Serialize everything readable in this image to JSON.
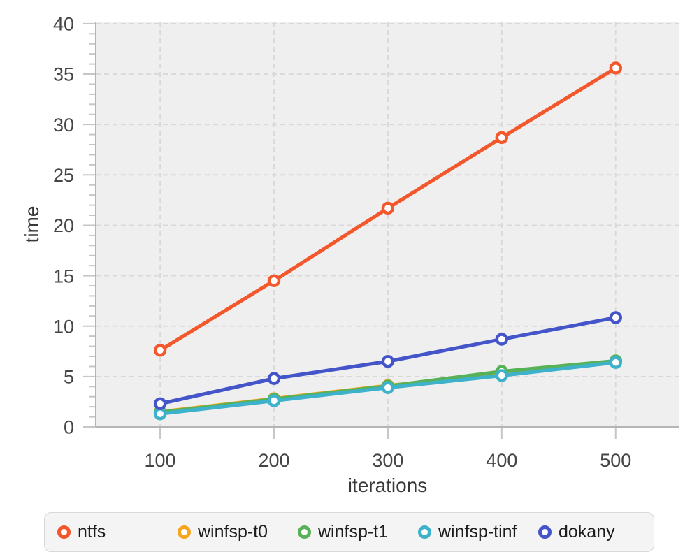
{
  "chart_data": {
    "type": "line",
    "title": "",
    "xlabel": "iterations",
    "ylabel": "time",
    "x": [
      100,
      200,
      300,
      400,
      500
    ],
    "xticks": [
      "100",
      "200",
      "300",
      "400",
      "500"
    ],
    "yticks": [
      0,
      5,
      10,
      15,
      20,
      25,
      30,
      35,
      40
    ],
    "xlim": [
      43.5,
      556
    ],
    "ylim": [
      0,
      40.2
    ],
    "grid": "dashed",
    "legend_position": "bottom",
    "plot_bg": "#efefef",
    "grid_color": "#d8d8d8",
    "axis_color": "#b5b5b5",
    "tick_color": "#c6c6c6",
    "series": [
      {
        "name": "ntfs",
        "color": "#f2582b",
        "values": [
          7.6,
          14.5,
          21.7,
          28.7,
          35.6
        ]
      },
      {
        "name": "winfsp-t0",
        "color": "#f6a61e",
        "values": [
          1.5,
          2.8,
          4.1,
          5.25,
          6.5
        ]
      },
      {
        "name": "winfsp-t1",
        "color": "#57b257",
        "values": [
          1.45,
          2.75,
          4.05,
          5.5,
          6.55
        ]
      },
      {
        "name": "winfsp-tinf",
        "color": "#3eb1cb",
        "values": [
          1.3,
          2.6,
          3.9,
          5.1,
          6.4
        ]
      },
      {
        "name": "dokany",
        "color": "#4355c9",
        "values": [
          2.3,
          4.8,
          6.5,
          8.7,
          10.85
        ]
      }
    ]
  }
}
